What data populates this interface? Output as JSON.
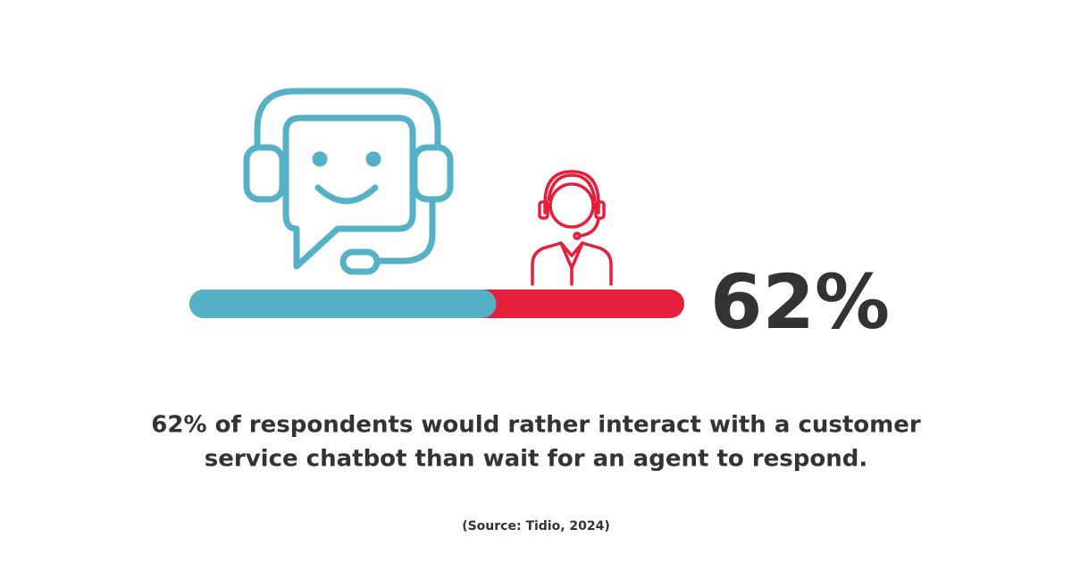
{
  "chart_data": {
    "type": "progress",
    "values": [
      62
    ],
    "value_labels": [
      "62%"
    ],
    "xlim": [
      0,
      100
    ],
    "colors": [
      "#56b1c6",
      "#e41f3b"
    ],
    "description": [
      "62% of respondents would rather interact with a customer",
      "service chatbot than wait for an agent to respond."
    ],
    "source": "(Source: Tidio, 2024)"
  }
}
